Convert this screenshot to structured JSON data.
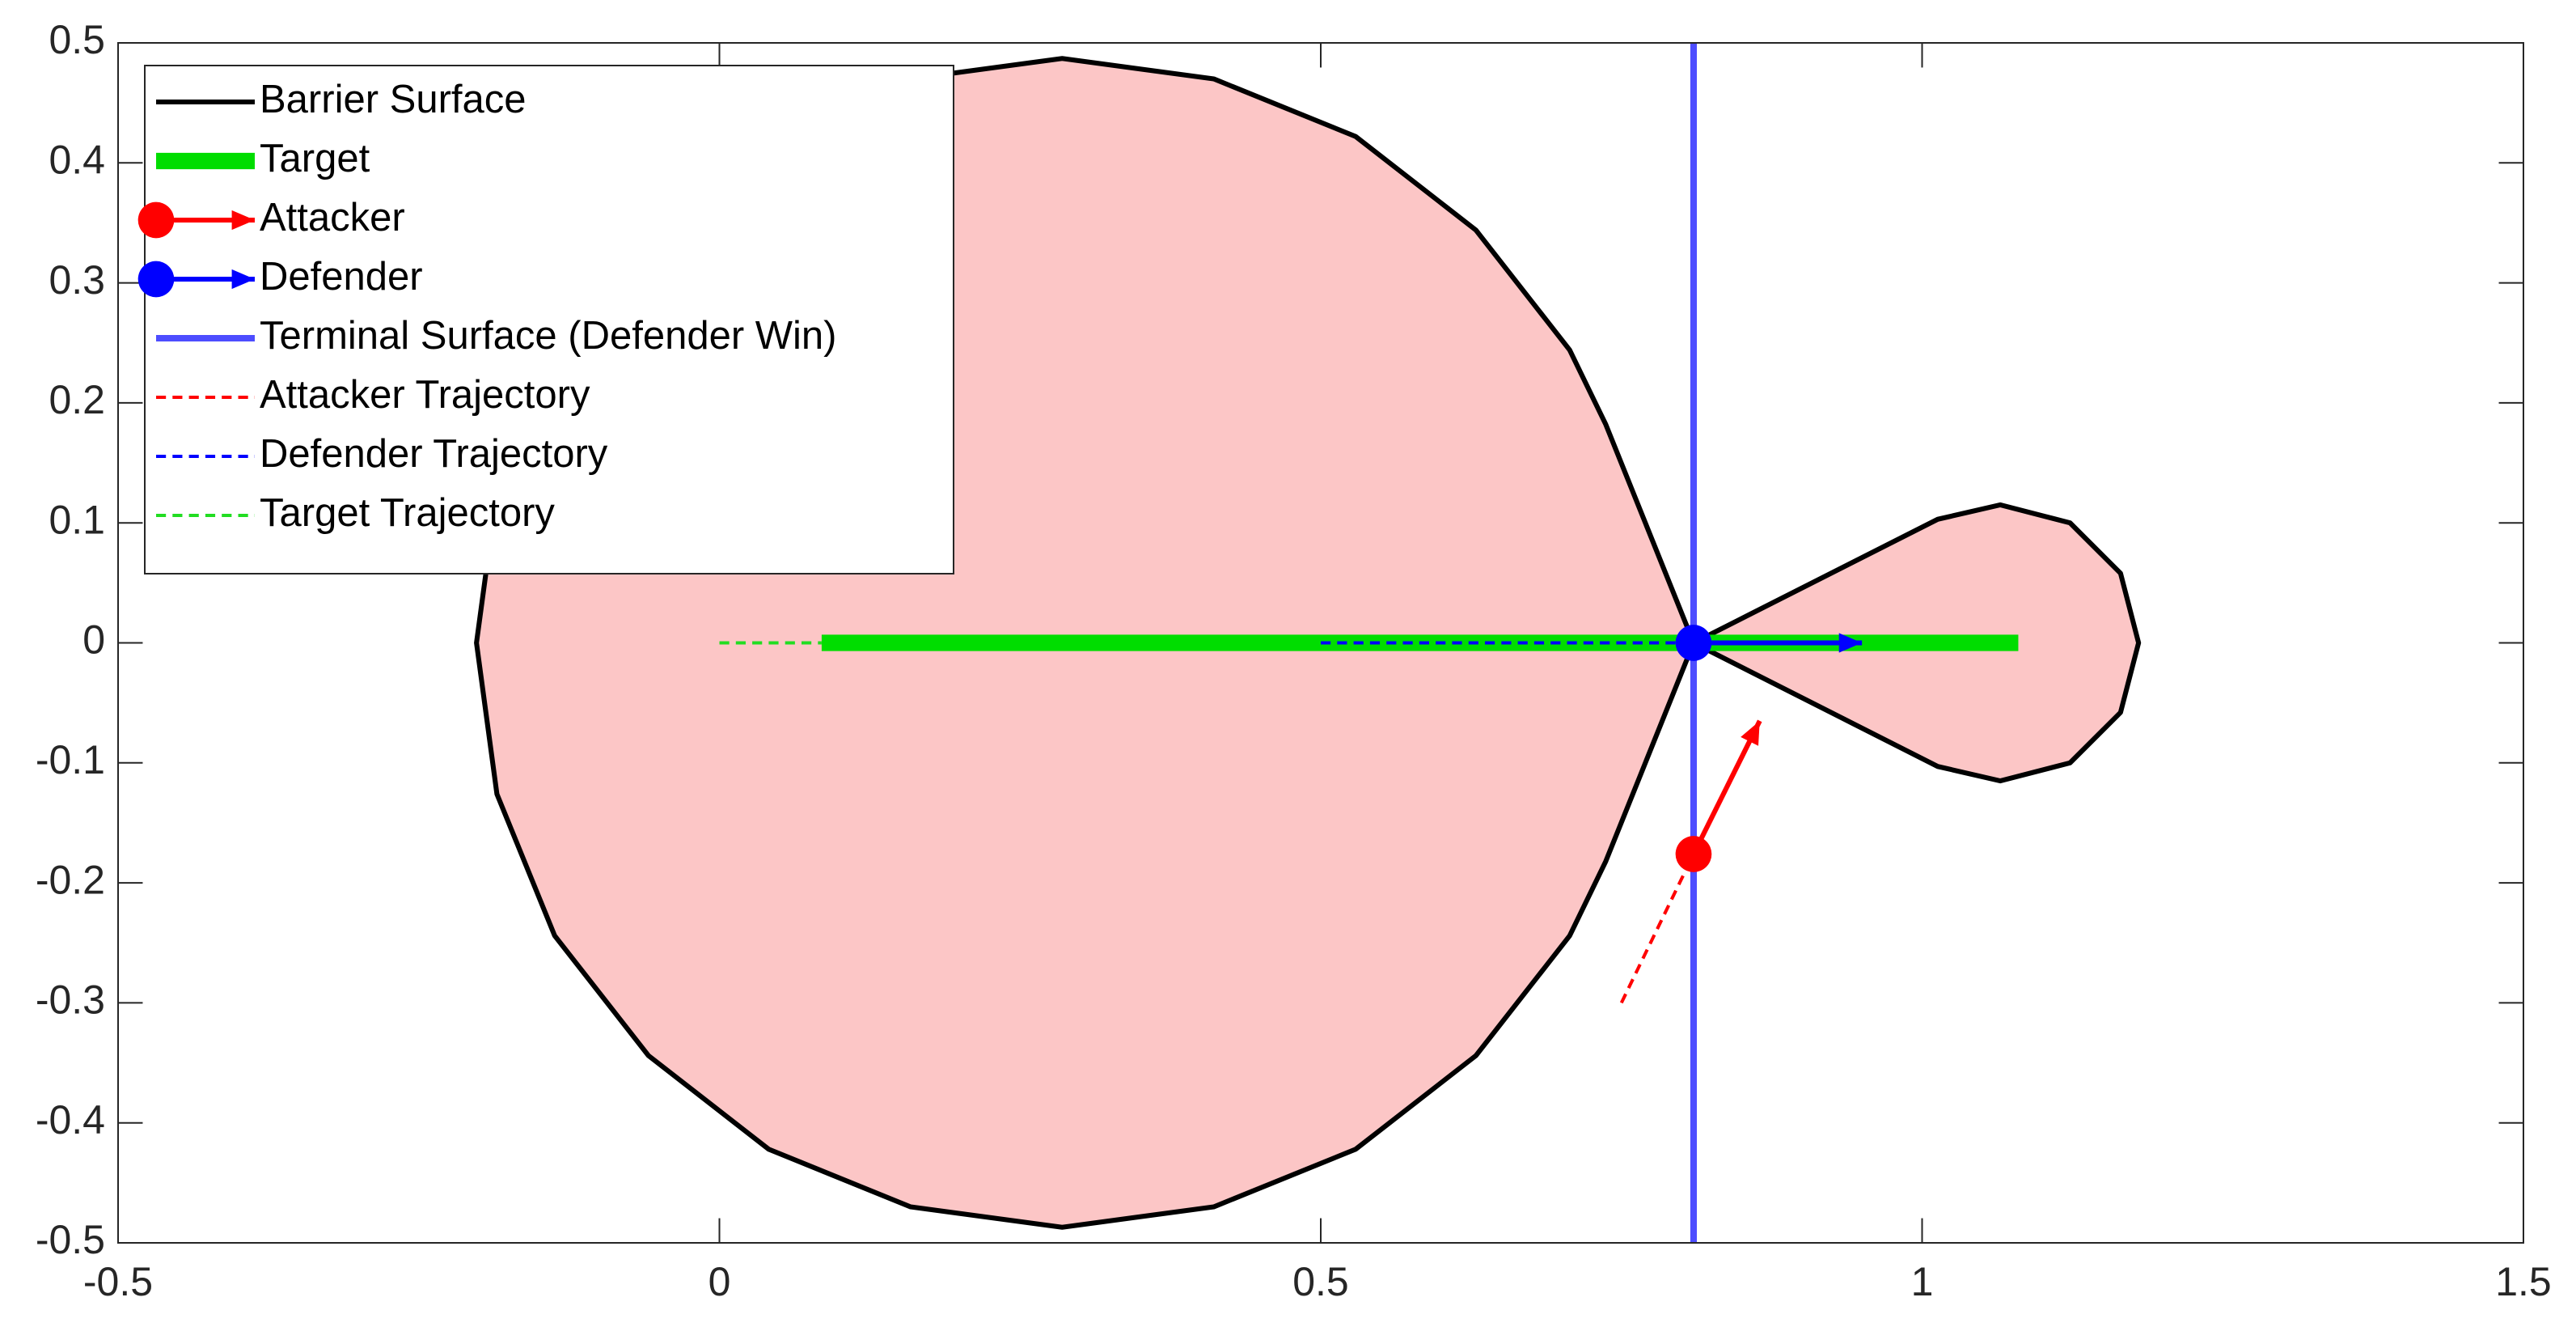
{
  "chart_data": {
    "type": "line",
    "xlim": [
      -0.5,
      1.5
    ],
    "xticks": [
      -0.5,
      0,
      0.5,
      1,
      1.5
    ],
    "ylim": [
      -0.5,
      0.5
    ],
    "yticks": [
      -0.5,
      -0.4,
      -0.3,
      -0.2,
      -0.1,
      0,
      0.1,
      0.2,
      0.3,
      0.4,
      0.5
    ],
    "grid": false,
    "legend": "upper left",
    "series": [
      {
        "name": "Barrier Surface",
        "color": "#000000",
        "line_style": "-",
        "line_width": 3,
        "fill": "#fcc6c6",
        "x": [
          0.81,
          0.737,
          0.707,
          0.629,
          0.529,
          0.411,
          0.285,
          0.159,
          0.041,
          -0.059,
          -0.137,
          -0.185,
          -0.202,
          -0.185,
          -0.137,
          -0.059,
          0.041,
          0.159,
          0.285,
          0.411,
          0.529,
          0.629,
          0.707,
          0.737,
          0.81,
          1.013,
          1.065,
          1.123,
          1.165,
          1.18,
          1.165,
          1.123,
          1.065,
          1.013,
          0.81
        ],
        "y": [
          0,
          0.182,
          0.244,
          0.344,
          0.422,
          0.47,
          0.487,
          0.47,
          0.422,
          0.344,
          0.244,
          0.126,
          0,
          -0.126,
          -0.244,
          -0.344,
          -0.422,
          -0.47,
          -0.487,
          -0.47,
          -0.422,
          -0.344,
          -0.244,
          -0.182,
          0,
          0.103,
          0.115,
          0.1,
          0.058,
          0,
          -0.058,
          -0.1,
          -0.115,
          -0.103,
          0
        ]
      },
      {
        "name": "Target",
        "color": "#00dd00",
        "line_style": "-",
        "line_width": 10,
        "x": [
          0.085,
          1.08
        ],
        "y": [
          0,
          0
        ]
      },
      {
        "name": "Attacker",
        "color": "#ff0000",
        "marker": "o",
        "x": [
          0.81
        ],
        "y": [
          -0.176
        ],
        "u": [
          0.055
        ],
        "v": [
          0.111
        ]
      },
      {
        "name": "Defender",
        "color": "#0000ff",
        "marker": "o",
        "x": [
          0.81
        ],
        "y": [
          0
        ],
        "u": [
          0.14
        ],
        "v": [
          0
        ]
      },
      {
        "name": "Terminal Surface (Defender Win)",
        "color": "#4d4dff",
        "line_style": "-",
        "line_width": 4,
        "x": [
          0.81,
          0.81
        ],
        "y": [
          -0.5,
          0.5
        ]
      },
      {
        "name": "Attacker Trajectory",
        "color": "#ff0000",
        "line_style": "--",
        "line_width": 2,
        "x": [
          0.75,
          0.81
        ],
        "y": [
          -0.3,
          -0.176
        ]
      },
      {
        "name": "Defender Trajectory",
        "color": "#0000ff",
        "line_style": "--",
        "line_width": 2,
        "x": [
          0.5,
          0.81
        ],
        "y": [
          0,
          0
        ]
      },
      {
        "name": "Target Trajectory",
        "color": "#22dd22",
        "line_style": "--",
        "line_width": 2,
        "x": [
          0,
          0.085
        ],
        "y": [
          0,
          0
        ]
      }
    ]
  }
}
